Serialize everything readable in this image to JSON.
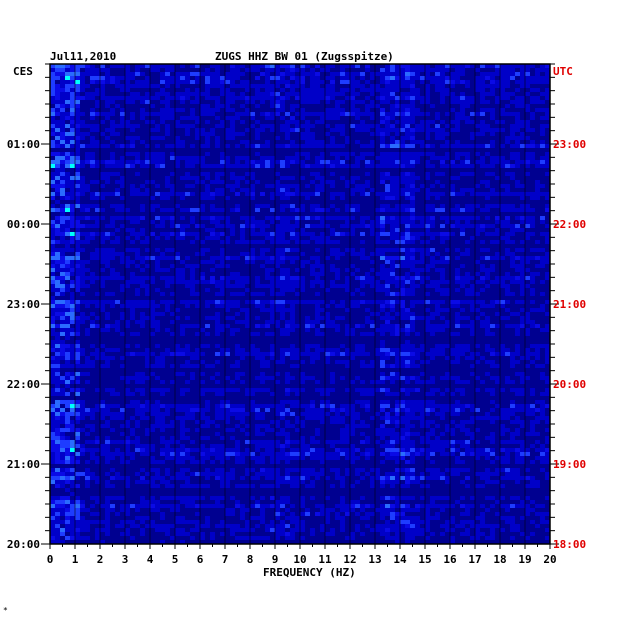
{
  "header": {
    "date": "Jul11,2010",
    "station": "ZUGS HHZ BW 01 (Zugsspitze)"
  },
  "corner_mark": "*",
  "chart_data": {
    "type": "heatmap",
    "title": "ZUGS HHZ BW 01 (Zugsspitze)",
    "date": "Jul11,2010",
    "xlabel": "FREQUENCY (HZ)",
    "xlim": [
      0,
      20
    ],
    "x_ticks": [
      "0",
      "1",
      "2",
      "3",
      "4",
      "5",
      "6",
      "7",
      "8",
      "9",
      "10",
      "11",
      "12",
      "13",
      "14",
      "15",
      "16",
      "17",
      "18",
      "19",
      "20"
    ],
    "left_axis": {
      "label": "CES",
      "ticks": [
        "01:00",
        "00:00",
        "23:00",
        "22:00",
        "21:00",
        "20:00"
      ],
      "values_hours": [
        25,
        24,
        23,
        22,
        21,
        20
      ]
    },
    "right_axis": {
      "label": "UTC",
      "ticks": [
        "23:00",
        "22:00",
        "21:00",
        "20:00",
        "19:00",
        "18:00"
      ],
      "values_hours": [
        23,
        22,
        21,
        20,
        19,
        18
      ]
    },
    "time_range_hours_local": [
      20,
      26
    ],
    "grid": true,
    "colors": {
      "background": "#0a0ae6",
      "low": "#000090",
      "mid": "#1e3cff",
      "high": "#00ffff",
      "peak": "#ffff00",
      "max": "#ff2000",
      "frame": "#000000",
      "utc_text": "#e00000"
    },
    "energy_bands_hz": [
      {
        "range": [
          0,
          1.2
        ],
        "level": "high"
      },
      {
        "range": [
          13.2,
          14.6
        ],
        "level": "mid-high"
      },
      {
        "range": [
          8.8,
          9.8
        ],
        "level": "mid"
      }
    ]
  }
}
